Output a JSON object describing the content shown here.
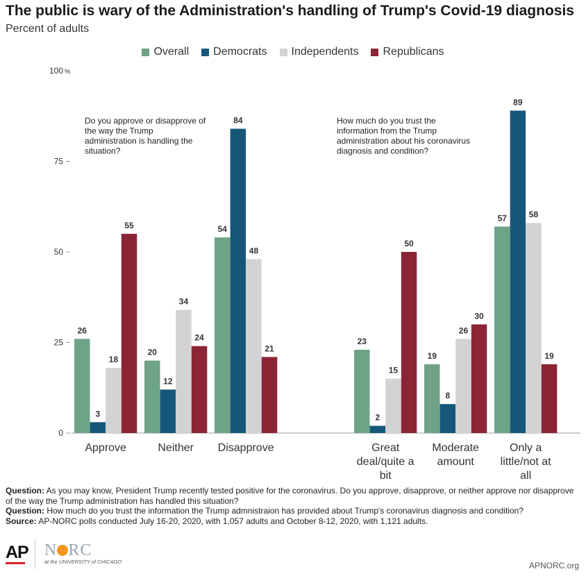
{
  "header": {
    "title": "The public is wary of the Administration's handling of Trump's Covid-19 diagnosis",
    "subtitle": "Percent of adults"
  },
  "chart_data": {
    "type": "bar",
    "title": "The public is wary of the Administration's handling of Trump's Covid-19 diagnosis",
    "subtitle": "Percent of adults",
    "ylim": [
      0,
      100
    ],
    "yticks": [
      0,
      25,
      50,
      75,
      100
    ],
    "ytick_labels": [
      "0",
      "25",
      "50",
      "75",
      "100"
    ],
    "y_unit": "%",
    "grid": false,
    "legend_position": "top-center",
    "series": [
      {
        "name": "Overall",
        "color": "#6fa387"
      },
      {
        "name": "Democrats",
        "color": "#17587a"
      },
      {
        "name": "Independents",
        "color": "#d3d3d3"
      },
      {
        "name": "Republicans",
        "color": "#8b2535"
      }
    ],
    "groups": [
      {
        "question": "Do you approve or disapprove of the way the Trump administration is handling the situation?",
        "question_lines": [
          "Do you approve or disapprove of",
          "the way the Trump",
          "administration is handling the",
          "situation?"
        ],
        "categories": [
          {
            "label_lines": [
              "Approve"
            ],
            "values": [
              26,
              3,
              18,
              55
            ]
          },
          {
            "label_lines": [
              "Neither"
            ],
            "values": [
              20,
              12,
              34,
              24
            ]
          },
          {
            "label_lines": [
              "Disapprove"
            ],
            "values": [
              54,
              84,
              48,
              21
            ]
          }
        ]
      },
      {
        "question": "How much do you trust the information from the Trump administration about his coronavirus diagnosis and condition?",
        "question_lines": [
          "How much do you trust the",
          "information from the Trump",
          "administration about his coronavirus",
          "diagnosis and condition?"
        ],
        "categories": [
          {
            "label_lines": [
              "Great",
              "deal/quite a",
              "bit"
            ],
            "values": [
              23,
              2,
              15,
              50
            ]
          },
          {
            "label_lines": [
              "Moderate",
              "amount"
            ],
            "values": [
              19,
              8,
              26,
              30
            ]
          },
          {
            "label_lines": [
              "Only a",
              "little/not at",
              "all"
            ],
            "values": [
              57,
              89,
              58,
              19
            ]
          }
        ]
      }
    ]
  },
  "notes": {
    "q1_label": "Question:",
    "q1_text": " As you may know, President Trump recently tested positive for the coronavirus. Do you approve, disapprove, or neither approve nor disapprove of the way the Trump administration has handled this situation?",
    "q2_label": "Question:",
    "q2_text": " How much do you trust the information the Trump admnistraion has provided about Trump's coronavirus diagnosis and condition?",
    "source_label": "Source:",
    "source_text": " AP-NORC polls conducted July 16-20, 2020, with 1,057 adults and October 8-12, 2020, with 1,121 adults."
  },
  "footer": {
    "ap_logo": "AP",
    "norc_logo_left": "N",
    "norc_logo_right": "RC",
    "norc_sub": "at the UNIVERSITY of CHICAGO",
    "site": "APNORC.org"
  }
}
